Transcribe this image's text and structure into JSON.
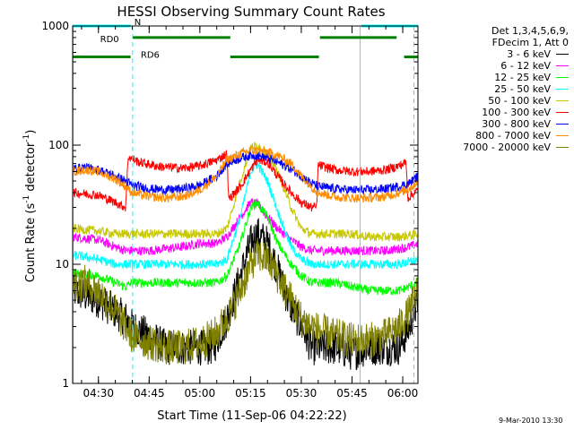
{
  "chart_data": {
    "type": "line",
    "title": "HESSI Observing Summary Count Rates",
    "xlabel": "Start Time (11-Sep-06 04:22:22)",
    "ylabel_main": "Count Rate (s",
    "ylabel_sup1": "-1",
    "ylabel_mid": " detector",
    "ylabel_sup2": "-1",
    "ylabel_end": ")",
    "x_range_min": [
      22.37,
      124.5
    ],
    "x_ticks": [
      {
        "t": 30,
        "label": "04:30"
      },
      {
        "t": 45,
        "label": "04:45"
      },
      {
        "t": 60,
        "label": "05:00"
      },
      {
        "t": 75,
        "label": "05:15"
      },
      {
        "t": 90,
        "label": "05:30"
      },
      {
        "t": 105,
        "label": "05:45"
      },
      {
        "t": 120,
        "label": "06:00"
      }
    ],
    "y_scale": "log",
    "y_range": [
      1,
      1000
    ],
    "y_ticks": [
      {
        "v": 1,
        "label": "1"
      },
      {
        "v": 10,
        "label": "10"
      },
      {
        "v": 100,
        "label": "100"
      },
      {
        "v": 1000,
        "label": "1000"
      }
    ],
    "legend_header": [
      "Det 1,3,4,5,6,9,",
      "FDecim 1, Att 0"
    ],
    "legend_placement": "right",
    "series": [
      {
        "name": "3 - 6 keV",
        "color": "#000000",
        "x": [
          22.4,
          30,
          38,
          40,
          45,
          50,
          55,
          60,
          64,
          68,
          72,
          75,
          77,
          80,
          83,
          86,
          90,
          93,
          95,
          100,
          105,
          110,
          115,
          119,
          122,
          124.5
        ],
        "y": [
          6,
          5,
          3.5,
          3,
          2.5,
          2,
          2,
          2,
          2,
          3.5,
          8,
          15,
          18,
          15,
          9,
          5,
          3,
          2,
          2,
          2,
          1.8,
          2,
          2,
          2,
          3,
          5
        ]
      },
      {
        "name": "6 - 12 keV",
        "color": "#ff00ff",
        "x": [
          22.4,
          30,
          35,
          38,
          40,
          45,
          50,
          55,
          60,
          65,
          68,
          72,
          75,
          77,
          80,
          83,
          87,
          90,
          93,
          95,
          100,
          105,
          110,
          115,
          119,
          122,
          124.5
        ],
        "y": [
          17,
          16,
          14,
          13,
          13,
          13,
          13.5,
          14,
          15,
          15,
          17,
          25,
          33,
          32,
          25,
          20,
          16,
          14,
          13,
          13,
          13,
          13,
          13,
          13,
          13.5,
          14,
          15
        ]
      },
      {
        "name": "12 - 25 keV",
        "color": "#00ff00",
        "x": [
          22.4,
          30,
          35,
          38,
          40,
          45,
          50,
          55,
          60,
          65,
          68,
          72,
          75,
          77,
          80,
          83,
          87,
          90,
          93,
          95,
          100,
          105,
          110,
          115,
          119,
          122,
          124.5
        ],
        "y": [
          8.5,
          8,
          7,
          6.5,
          7,
          7,
          7,
          7,
          7,
          7,
          8,
          15,
          30,
          33,
          25,
          15,
          10,
          8,
          7,
          7,
          7,
          6.5,
          6,
          6,
          6,
          6.5,
          7
        ]
      },
      {
        "name": "25 - 50 keV",
        "color": "#00ffff",
        "x": [
          22.4,
          30,
          35,
          38,
          40,
          45,
          50,
          55,
          60,
          65,
          68,
          72,
          75,
          77,
          80,
          83,
          87,
          90,
          93,
          95,
          100,
          105,
          110,
          115,
          119,
          122,
          124.5
        ],
        "y": [
          12,
          11,
          10,
          10,
          10,
          10,
          10,
          10,
          10,
          10,
          11,
          25,
          60,
          70,
          50,
          28,
          14,
          11,
          10,
          10,
          10,
          10,
          10,
          10,
          10,
          10.5,
          11
        ]
      },
      {
        "name": "50 - 100 keV",
        "color": "#c8c800",
        "x": [
          22.4,
          30,
          35,
          38,
          40,
          45,
          50,
          55,
          60,
          65,
          68,
          72,
          75,
          77,
          80,
          83,
          87,
          90,
          93,
          95,
          100,
          105,
          110,
          115,
          119,
          122,
          124.5
        ],
        "y": [
          20,
          19,
          18,
          18,
          18,
          18,
          18,
          18,
          18,
          18,
          20,
          50,
          95,
          100,
          85,
          60,
          30,
          20,
          18,
          18,
          18,
          18,
          17,
          17,
          17,
          17.5,
          18
        ]
      },
      {
        "name": "100 - 300 keV",
        "color": "#ff0000",
        "x": [
          22.4,
          30,
          35,
          38,
          38.8,
          42,
          48,
          55,
          60,
          65,
          68,
          68.5,
          72,
          75,
          77,
          80,
          83,
          87,
          90,
          93,
          94.5,
          95,
          100,
          105,
          110,
          115,
          119,
          121,
          121.5,
          124.5
        ],
        "y": [
          40,
          38,
          33,
          30,
          80,
          72,
          66,
          64,
          67,
          75,
          85,
          35,
          45,
          62,
          75,
          72,
          55,
          40,
          33,
          30,
          30,
          68,
          62,
          60,
          60,
          62,
          67,
          72,
          36,
          42
        ]
      },
      {
        "name": "300 - 800 keV",
        "color": "#0000ff",
        "x": [
          22.4,
          26,
          30,
          35,
          38,
          40,
          45,
          50,
          55,
          60,
          65,
          68,
          72,
          75,
          77,
          80,
          83,
          87,
          90,
          93,
          95,
          100,
          105,
          110,
          115,
          119,
          122,
          124.5
        ],
        "y": [
          63,
          65,
          62,
          55,
          50,
          46,
          43,
          42,
          43,
          46,
          55,
          70,
          78,
          82,
          82,
          78,
          72,
          63,
          55,
          48,
          45,
          43,
          42,
          42,
          43,
          45,
          48,
          55
        ]
      },
      {
        "name": "800 - 7000 keV",
        "color": "#ff8c00",
        "x": [
          22.4,
          26,
          30,
          35,
          38,
          40,
          45,
          50,
          55,
          60,
          65,
          68,
          72,
          75,
          77,
          80,
          83,
          87,
          90,
          93,
          95,
          100,
          105,
          110,
          115,
          119,
          122,
          124.5
        ],
        "y": [
          60,
          62,
          60,
          52,
          45,
          40,
          37,
          36,
          37,
          42,
          55,
          75,
          85,
          90,
          90,
          88,
          82,
          70,
          55,
          45,
          40,
          37,
          36,
          36,
          37,
          40,
          43,
          50
        ]
      },
      {
        "name": "7000 - 20000 keV",
        "color": "#808000",
        "x": [
          22.4,
          26,
          30,
          35,
          38,
          40,
          45,
          50,
          55,
          60,
          64,
          68,
          72,
          75,
          77,
          80,
          83,
          87,
          90,
          93,
          95,
          100,
          105,
          110,
          115,
          119,
          122,
          124.5
        ],
        "y": [
          7,
          7,
          6,
          4,
          3,
          2.5,
          2.2,
          2,
          2,
          2.2,
          2.5,
          3.5,
          6,
          10,
          12,
          11,
          8,
          5,
          3.5,
          3,
          2.8,
          2.5,
          2.3,
          2.3,
          2.5,
          3,
          4,
          6
        ]
      }
    ],
    "vertical_markers_solid": [
      22.5,
      107.4
    ],
    "vertical_markers_dashed": [
      40.1,
      123.3
    ],
    "flag_bars": [
      {
        "name": "N",
        "color": "#00ffff",
        "y": 1000,
        "segments": [
          [
            22.4,
            39.5
          ],
          [
            107.8,
            124.5
          ]
        ]
      },
      {
        "name": "RD0",
        "color": "#008000",
        "y": 800,
        "segments": [
          [
            40.2,
            69.0
          ],
          [
            95.5,
            118.2
          ]
        ]
      },
      {
        "name": "RD6",
        "color": "#008000",
        "y": 550,
        "segments": [
          [
            22.4,
            39.5
          ],
          [
            69.0,
            95.2
          ],
          [
            120.4,
            124.5
          ]
        ]
      }
    ],
    "flag_labels": [
      "N",
      "RD0",
      "RD6"
    ]
  },
  "footer": {
    "timestamp": "9-Mar-2010 13:30"
  }
}
